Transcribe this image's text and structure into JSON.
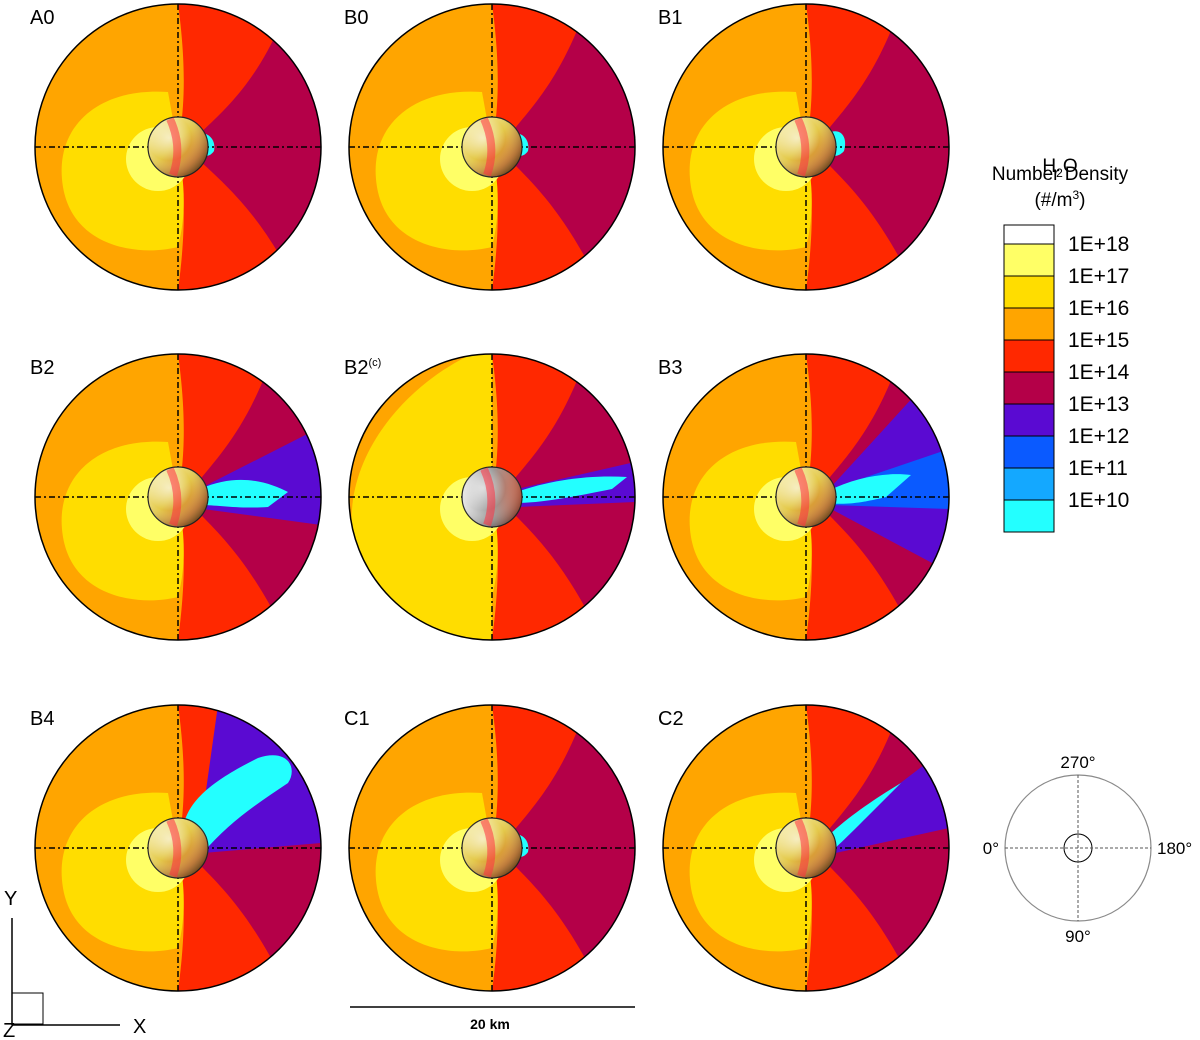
{
  "panels": [
    {
      "label": "A0",
      "sup": "",
      "plume": "none",
      "lit": false
    },
    {
      "label": "B0",
      "sup": "",
      "plume": "none",
      "lit": false
    },
    {
      "label": "B1",
      "sup": "",
      "plume": "small",
      "lit": false
    },
    {
      "label": "B2",
      "sup": "",
      "plume": "wide",
      "lit": false
    },
    {
      "label": "B2",
      "sup": "(c)",
      "plume": "thin",
      "lit": true
    },
    {
      "label": "B3",
      "sup": "",
      "plume": "huge",
      "lit": false
    },
    {
      "label": "B4",
      "sup": "",
      "plume": "up",
      "lit": false
    },
    {
      "label": "C1",
      "sup": "",
      "plume": "none",
      "lit": false
    },
    {
      "label": "C2",
      "sup": "",
      "plume": "upthin",
      "lit": false
    }
  ],
  "legend": {
    "title_line1": "H",
    "title_sub": "2",
    "title_line1b": "O",
    "title_line2": "Number Density",
    "title_line3": "(#/m",
    "title_sup": "3",
    "title_line3b": ")",
    "ticks": [
      "1E+18",
      "1E+17",
      "1E+16",
      "1E+15",
      "1E+14",
      "1E+13",
      "1E+12",
      "1E+11",
      "1E+10"
    ],
    "colors": [
      "#ffffff",
      "#ffff66",
      "#ffdd00",
      "#ffa500",
      "#ff2800",
      "#b40048",
      "#5a0ad2",
      "#0a5aff",
      "#14a8ff",
      "#23ffff"
    ]
  },
  "orientation": {
    "top": "270°",
    "left": "0°",
    "right": "180°",
    "bottom": "90°"
  },
  "axes": {
    "y": "Y",
    "x": "X",
    "z": "Z"
  },
  "scale_bar": {
    "label": "20 km"
  },
  "colors": {
    "yellow_core": "#ffff66",
    "yellow": "#ffdd00",
    "orange": "#ffa500",
    "red": "#ff2800",
    "crimson": "#b40048",
    "violet": "#5a0ad2",
    "blue": "#0a5aff",
    "cyan": "#23ffff"
  }
}
